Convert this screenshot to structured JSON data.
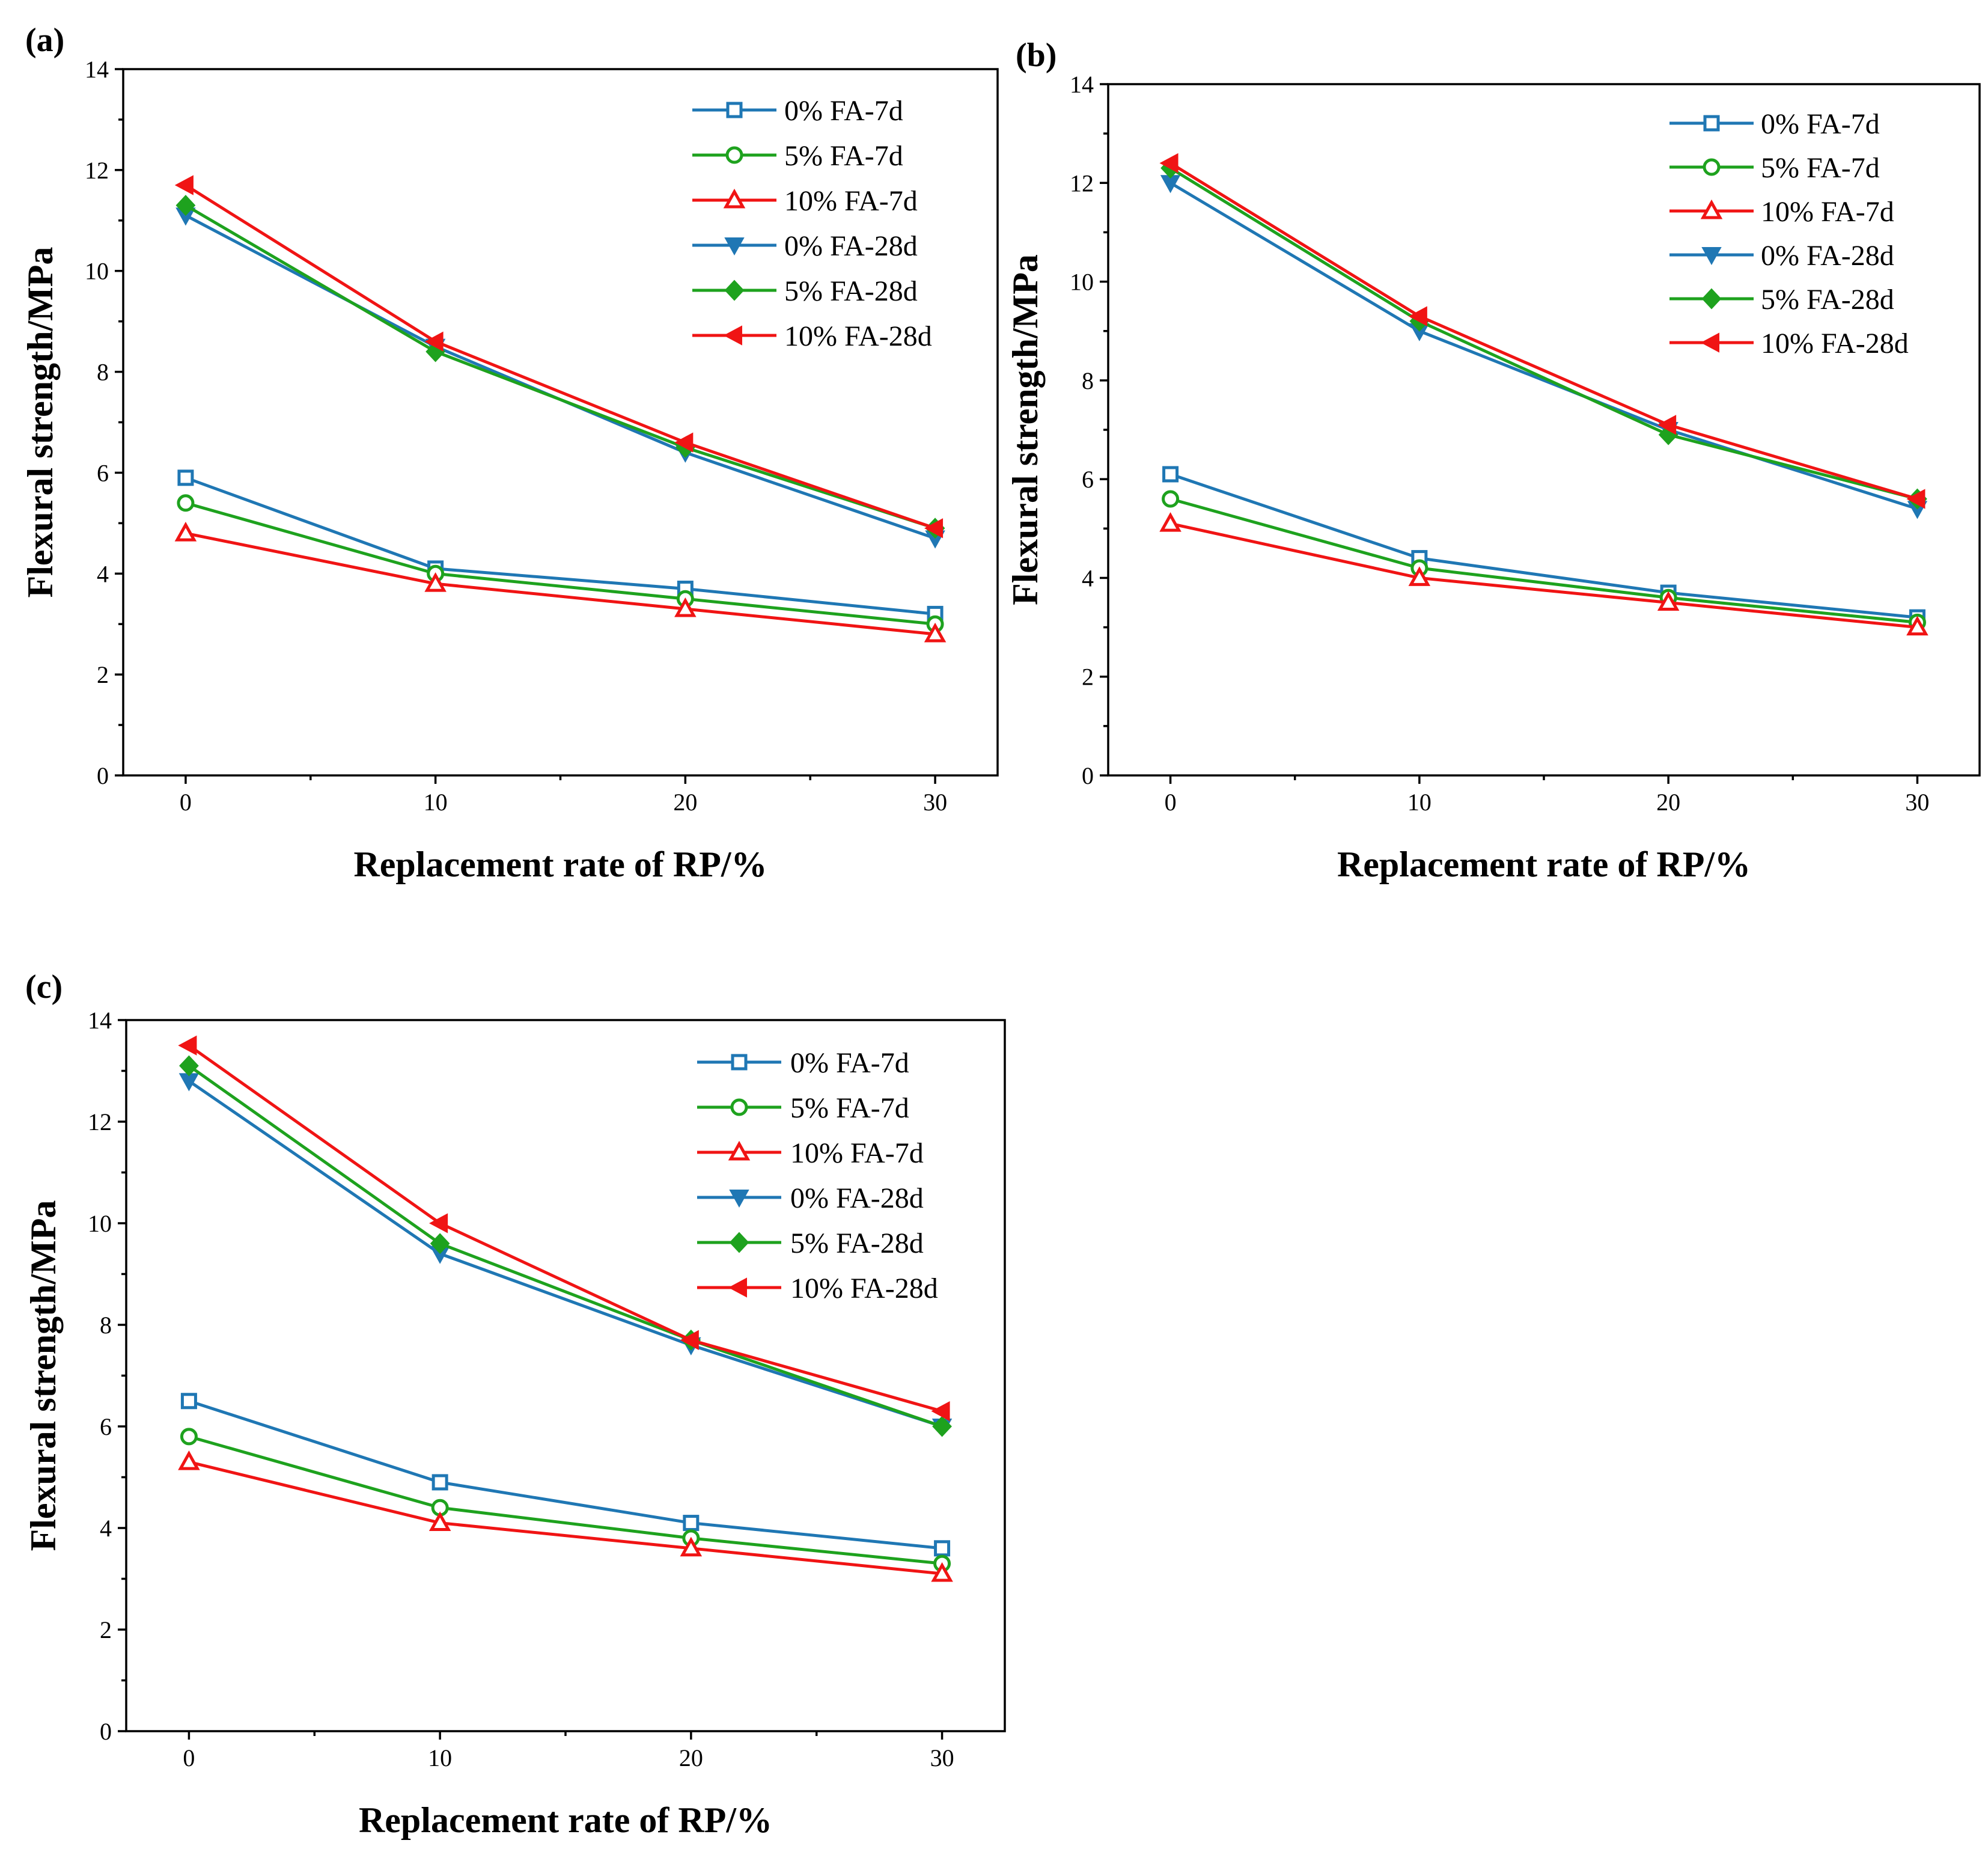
{
  "figure": {
    "marker_legend": {
      "square-open": "square",
      "circle-open": "circle",
      "triangle-up-open": "triangle-up",
      "triangle-down-filled": "triangle-down",
      "diamond-filled": "diamond",
      "triangle-left-filled": "triangle-left"
    }
  },
  "chart_data": [
    {
      "panel_label": "(a)",
      "type": "line",
      "xlabel": "Replacement rate of RP/%",
      "ylabel": "Flexural strength/MPa",
      "x": [
        0,
        10,
        20,
        30
      ],
      "x_ticks": [
        "0",
        "10",
        "20",
        "30"
      ],
      "xlim": [
        -2.5,
        32.5
      ],
      "ylim": [
        0,
        14
      ],
      "y_ticks": [
        "0",
        "2",
        "4",
        "6",
        "8",
        "10",
        "12",
        "14"
      ],
      "grid": false,
      "legend_position": "top-right",
      "series": [
        {
          "name": "0% FA-7d",
          "color": "#1f77b4",
          "marker": "square-open",
          "values": [
            5.9,
            4.1,
            3.7,
            3.2
          ]
        },
        {
          "name": "5% FA-7d",
          "color": "#1ea21e",
          "marker": "circle-open",
          "values": [
            5.4,
            4.0,
            3.5,
            3.0
          ]
        },
        {
          "name": "10% FA-7d",
          "color": "#f01414",
          "marker": "triangle-up-open",
          "values": [
            4.8,
            3.8,
            3.3,
            2.8
          ]
        },
        {
          "name": "0% FA-28d",
          "color": "#1f77b4",
          "marker": "triangle-down-filled",
          "values": [
            11.1,
            8.5,
            6.4,
            4.7
          ]
        },
        {
          "name": "5% FA-28d",
          "color": "#1ea21e",
          "marker": "diamond-filled",
          "values": [
            11.3,
            8.4,
            6.5,
            4.9
          ]
        },
        {
          "name": "10% FA-28d",
          "color": "#f01414",
          "marker": "triangle-left-filled",
          "values": [
            11.7,
            8.6,
            6.6,
            4.9
          ]
        }
      ]
    },
    {
      "panel_label": "(b)",
      "type": "line",
      "xlabel": "Replacement rate of RP/%",
      "ylabel": "Flexural strength/MPa",
      "x": [
        0,
        10,
        20,
        30
      ],
      "x_ticks": [
        "0",
        "10",
        "20",
        "30"
      ],
      "xlim": [
        -2.5,
        32.5
      ],
      "ylim": [
        0,
        14
      ],
      "y_ticks": [
        "0",
        "2",
        "4",
        "6",
        "8",
        "10",
        "12",
        "14"
      ],
      "grid": false,
      "legend_position": "top-right",
      "series": [
        {
          "name": "0% FA-7d",
          "color": "#1f77b4",
          "marker": "square-open",
          "values": [
            6.1,
            4.4,
            3.7,
            3.2
          ]
        },
        {
          "name": "5% FA-7d",
          "color": "#1ea21e",
          "marker": "circle-open",
          "values": [
            5.6,
            4.2,
            3.6,
            3.1
          ]
        },
        {
          "name": "10% FA-7d",
          "color": "#f01414",
          "marker": "triangle-up-open",
          "values": [
            5.1,
            4.0,
            3.5,
            3.0
          ]
        },
        {
          "name": "0% FA-28d",
          "color": "#1f77b4",
          "marker": "triangle-down-filled",
          "values": [
            12.0,
            9.0,
            7.0,
            5.4
          ]
        },
        {
          "name": "5% FA-28d",
          "color": "#1ea21e",
          "marker": "diamond-filled",
          "values": [
            12.3,
            9.2,
            6.9,
            5.6
          ]
        },
        {
          "name": "10% FA-28d",
          "color": "#f01414",
          "marker": "triangle-left-filled",
          "values": [
            12.4,
            9.3,
            7.1,
            5.6
          ]
        }
      ]
    },
    {
      "panel_label": "(c)",
      "type": "line",
      "xlabel": "Replacement rate of RP/%",
      "ylabel": "Flexural strength/MPa",
      "x": [
        0,
        10,
        20,
        30
      ],
      "x_ticks": [
        "0",
        "10",
        "20",
        "30"
      ],
      "xlim": [
        -2.5,
        32.5
      ],
      "ylim": [
        0,
        14
      ],
      "y_ticks": [
        "0",
        "2",
        "4",
        "6",
        "8",
        "10",
        "12",
        "14"
      ],
      "grid": false,
      "legend_position": "top-right",
      "series": [
        {
          "name": "0% FA-7d",
          "color": "#1f77b4",
          "marker": "square-open",
          "values": [
            6.5,
            4.9,
            4.1,
            3.6
          ]
        },
        {
          "name": "5% FA-7d",
          "color": "#1ea21e",
          "marker": "circle-open",
          "values": [
            5.8,
            4.4,
            3.8,
            3.3
          ]
        },
        {
          "name": "10% FA-7d",
          "color": "#f01414",
          "marker": "triangle-up-open",
          "values": [
            5.3,
            4.1,
            3.6,
            3.1
          ]
        },
        {
          "name": "0% FA-28d",
          "color": "#1f77b4",
          "marker": "triangle-down-filled",
          "values": [
            12.8,
            9.4,
            7.6,
            6.0
          ]
        },
        {
          "name": "5% FA-28d",
          "color": "#1ea21e",
          "marker": "diamond-filled",
          "values": [
            13.1,
            9.6,
            7.7,
            6.0
          ]
        },
        {
          "name": "10% FA-28d",
          "color": "#f01414",
          "marker": "triangle-left-filled",
          "values": [
            13.5,
            10.0,
            7.7,
            6.3
          ]
        }
      ]
    }
  ]
}
